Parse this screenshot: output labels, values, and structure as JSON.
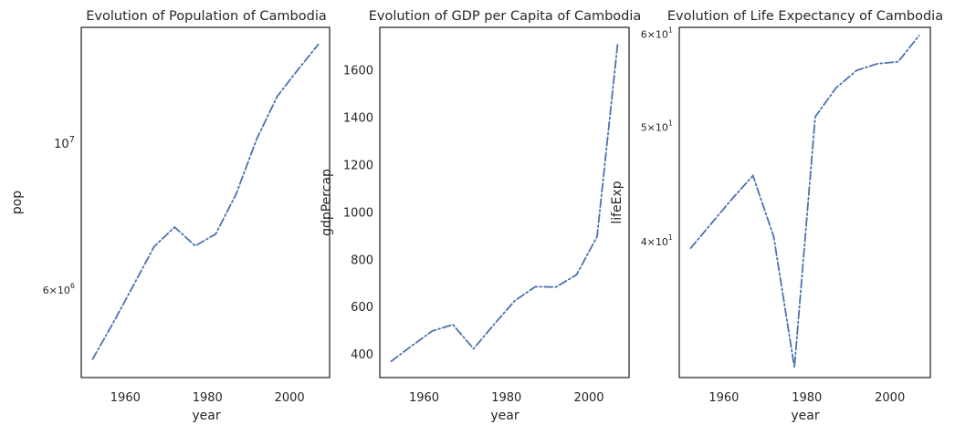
{
  "chart_data": [
    {
      "type": "line",
      "title": "Evolution of Population of Cambodia",
      "xlabel": "year",
      "ylabel": "pop",
      "yscale": "log",
      "x": [
        1952,
        1957,
        1962,
        1967,
        1972,
        1977,
        1982,
        1987,
        1992,
        1997,
        2002,
        2007
      ],
      "y": [
        4693836,
        5322536,
        6083619,
        6960067,
        7450606,
        6978607,
        7272485,
        8371791,
        10150094,
        11782962,
        12926707,
        14131858
      ],
      "xlim": [
        1949.25,
        2009.75
      ],
      "ylim": [
        4400000,
        15000000
      ],
      "xticks": [
        {
          "v": 1960,
          "label": "1960"
        },
        {
          "v": 1980,
          "label": "1980"
        },
        {
          "v": 2000,
          "label": "2000"
        }
      ],
      "yticks": [
        {
          "v": 10000000,
          "base": "10",
          "exp": "7",
          "major": true
        },
        {
          "v": 6000000,
          "base": "6×10",
          "exp": "6",
          "major": false
        }
      ],
      "grid": false
    },
    {
      "type": "line",
      "title": "Evolution of GDP per Capita of Cambodia",
      "xlabel": "year",
      "ylabel": "gdpPercap",
      "yscale": "linear",
      "x": [
        1952,
        1957,
        1962,
        1967,
        1972,
        1977,
        1982,
        1987,
        1992,
        1997,
        2002,
        2007
      ],
      "y": [
        368.47,
        434.04,
        496.91,
        523.43,
        421.62,
        524.97,
        624.48,
        683.9,
        682.3,
        734.29,
        896.23,
        1713.78
      ],
      "xlim": [
        1949.25,
        2009.75
      ],
      "ylim": [
        300,
        1780
      ],
      "xticks": [
        {
          "v": 1960,
          "label": "1960"
        },
        {
          "v": 1980,
          "label": "1980"
        },
        {
          "v": 2000,
          "label": "2000"
        }
      ],
      "yticks": [
        {
          "v": 400,
          "label": "400"
        },
        {
          "v": 600,
          "label": "600"
        },
        {
          "v": 800,
          "label": "800"
        },
        {
          "v": 1000,
          "label": "1000"
        },
        {
          "v": 1200,
          "label": "1200"
        },
        {
          "v": 1400,
          "label": "1400"
        },
        {
          "v": 1600,
          "label": "1600"
        }
      ],
      "grid": false
    },
    {
      "type": "line",
      "title": "Evolution of Life Expectancy of Cambodia",
      "xlabel": "year",
      "ylabel": "lifeExp",
      "yscale": "log",
      "x": [
        1952,
        1957,
        1962,
        1967,
        1972,
        1977,
        1982,
        1987,
        1992,
        1997,
        2002,
        2007
      ],
      "y": [
        39.417,
        41.366,
        43.415,
        45.415,
        40.317,
        31.22,
        50.957,
        53.914,
        55.803,
        56.534,
        56.752,
        59.723
      ],
      "xlim": [
        1949.25,
        2009.75
      ],
      "ylim": [
        30.6,
        60.7
      ],
      "xticks": [
        {
          "v": 1960,
          "label": "1960"
        },
        {
          "v": 1980,
          "label": "1980"
        },
        {
          "v": 2000,
          "label": "2000"
        }
      ],
      "yticks": [
        {
          "v": 60,
          "base": "6×10",
          "exp": "1",
          "major": false
        },
        {
          "v": 50,
          "base": "5×10",
          "exp": "1",
          "major": false
        },
        {
          "v": 40,
          "base": "4×10",
          "exp": "1",
          "major": false
        }
      ],
      "grid": false
    }
  ],
  "colors": {
    "series": "#4c72b0",
    "axes": "#262626",
    "background": "#ffffff"
  }
}
